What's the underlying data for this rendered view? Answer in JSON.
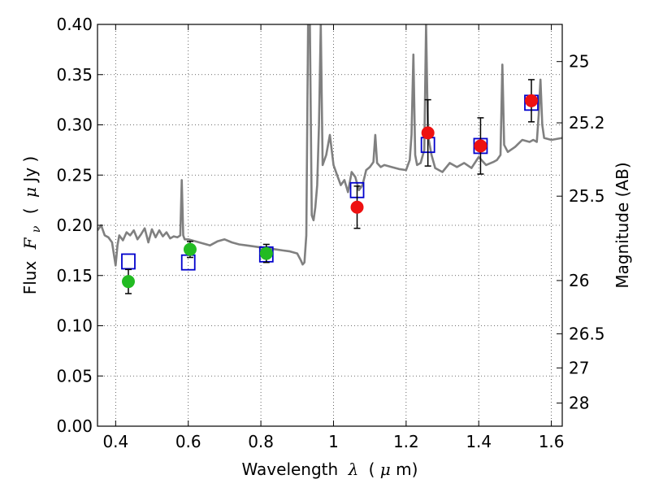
{
  "chart_data": {
    "type": "scatter",
    "xlabel_prefix": "Wavelength",
    "xlabel_symbol": "λ",
    "xlabel_unit_open": "(",
    "xlabel_unit_mu": "μ",
    "xlabel_unit_rest": "m)",
    "ylabel_prefix": "Flux",
    "ylabel_symbol": "F",
    "ylabel_sub": "ν",
    "ylabel_unit_open": "(",
    "ylabel_unit_mu": "μ",
    "ylabel_unit_rest": "Jy )",
    "y2label": "Magnitude (AB)",
    "xlim": [
      0.35,
      1.63
    ],
    "ylim": [
      0,
      0.4
    ],
    "grid": true,
    "x_ticks": [
      0.4,
      0.6,
      0.8,
      1.0,
      1.2,
      1.4,
      1.6
    ],
    "x_tick_labels": [
      "0.4",
      "0.6",
      "0.8",
      "1",
      "1.2",
      "1.4",
      "1.6"
    ],
    "y_ticks": [
      0,
      0.05,
      0.1,
      0.15,
      0.2,
      0.25,
      0.3,
      0.35,
      0.4
    ],
    "y_tick_labels": [
      "0.00",
      "0.05",
      "0.10",
      "0.15",
      "0.20",
      "0.25",
      "0.30",
      "0.35",
      "0.40"
    ],
    "y2_ticks": [
      {
        "flux": 0.363,
        "label": "25"
      },
      {
        "flux": 0.302,
        "label": "25.2"
      },
      {
        "flux": 0.229,
        "label": "25.5"
      },
      {
        "flux": 0.145,
        "label": "26"
      },
      {
        "flux": 0.092,
        "label": "26.5"
      },
      {
        "flux": 0.058,
        "label": "27"
      },
      {
        "flux": 0.023,
        "label": "28"
      }
    ],
    "colors": {
      "model": "#808080",
      "model_photometry": "#0000cc",
      "optical_points": "#22bb22",
      "nir_points": "#ee1111",
      "error_bars": "#000000"
    },
    "series": [
      {
        "kind": "model_spectrum",
        "points": [
          [
            0.35,
            0.195
          ],
          [
            0.36,
            0.2
          ],
          [
            0.37,
            0.19
          ],
          [
            0.38,
            0.188
          ],
          [
            0.39,
            0.183
          ],
          [
            0.4,
            0.16
          ],
          [
            0.405,
            0.18
          ],
          [
            0.41,
            0.19
          ],
          [
            0.42,
            0.185
          ],
          [
            0.43,
            0.193
          ],
          [
            0.44,
            0.19
          ],
          [
            0.45,
            0.195
          ],
          [
            0.46,
            0.186
          ],
          [
            0.47,
            0.191
          ],
          [
            0.48,
            0.197
          ],
          [
            0.49,
            0.183
          ],
          [
            0.5,
            0.196
          ],
          [
            0.51,
            0.188
          ],
          [
            0.52,
            0.195
          ],
          [
            0.53,
            0.189
          ],
          [
            0.54,
            0.193
          ],
          [
            0.55,
            0.187
          ],
          [
            0.56,
            0.189
          ],
          [
            0.57,
            0.188
          ],
          [
            0.578,
            0.19
          ],
          [
            0.582,
            0.245
          ],
          [
            0.586,
            0.19
          ],
          [
            0.59,
            0.186
          ],
          [
            0.6,
            0.186
          ],
          [
            0.62,
            0.184
          ],
          [
            0.64,
            0.182
          ],
          [
            0.66,
            0.18
          ],
          [
            0.68,
            0.184
          ],
          [
            0.7,
            0.186
          ],
          [
            0.72,
            0.183
          ],
          [
            0.74,
            0.181
          ],
          [
            0.76,
            0.18
          ],
          [
            0.78,
            0.179
          ],
          [
            0.8,
            0.178
          ],
          [
            0.82,
            0.177
          ],
          [
            0.84,
            0.176
          ],
          [
            0.86,
            0.175
          ],
          [
            0.88,
            0.174
          ],
          [
            0.9,
            0.172
          ],
          [
            0.91,
            0.165
          ],
          [
            0.915,
            0.161
          ],
          [
            0.92,
            0.163
          ],
          [
            0.925,
            0.19
          ],
          [
            0.93,
            0.4
          ],
          [
            0.935,
            0.4
          ],
          [
            0.94,
            0.21
          ],
          [
            0.945,
            0.205
          ],
          [
            0.95,
            0.218
          ],
          [
            0.955,
            0.24
          ],
          [
            0.96,
            0.3
          ],
          [
            0.965,
            0.4
          ],
          [
            0.97,
            0.26
          ],
          [
            0.98,
            0.27
          ],
          [
            0.99,
            0.29
          ],
          [
            1.0,
            0.26
          ],
          [
            1.01,
            0.25
          ],
          [
            1.02,
            0.24
          ],
          [
            1.03,
            0.245
          ],
          [
            1.04,
            0.233
          ],
          [
            1.05,
            0.253
          ],
          [
            1.06,
            0.248
          ],
          [
            1.07,
            0.235
          ],
          [
            1.08,
            0.24
          ],
          [
            1.09,
            0.255
          ],
          [
            1.1,
            0.258
          ],
          [
            1.11,
            0.263
          ],
          [
            1.115,
            0.29
          ],
          [
            1.12,
            0.262
          ],
          [
            1.13,
            0.258
          ],
          [
            1.14,
            0.26
          ],
          [
            1.16,
            0.258
          ],
          [
            1.18,
            0.256
          ],
          [
            1.2,
            0.255
          ],
          [
            1.21,
            0.265
          ],
          [
            1.215,
            0.29
          ],
          [
            1.22,
            0.37
          ],
          [
            1.225,
            0.27
          ],
          [
            1.23,
            0.26
          ],
          [
            1.24,
            0.262
          ],
          [
            1.25,
            0.275
          ],
          [
            1.255,
            0.4
          ],
          [
            1.26,
            0.29
          ],
          [
            1.27,
            0.27
          ],
          [
            1.28,
            0.257
          ],
          [
            1.3,
            0.253
          ],
          [
            1.32,
            0.262
          ],
          [
            1.34,
            0.258
          ],
          [
            1.36,
            0.262
          ],
          [
            1.38,
            0.257
          ],
          [
            1.4,
            0.268
          ],
          [
            1.42,
            0.26
          ],
          [
            1.44,
            0.263
          ],
          [
            1.45,
            0.265
          ],
          [
            1.46,
            0.27
          ],
          [
            1.465,
            0.36
          ],
          [
            1.47,
            0.28
          ],
          [
            1.48,
            0.273
          ],
          [
            1.5,
            0.278
          ],
          [
            1.52,
            0.285
          ],
          [
            1.54,
            0.283
          ],
          [
            1.55,
            0.285
          ],
          [
            1.56,
            0.283
          ],
          [
            1.565,
            0.31
          ],
          [
            1.57,
            0.345
          ],
          [
            1.575,
            0.3
          ],
          [
            1.58,
            0.287
          ],
          [
            1.6,
            0.285
          ],
          [
            1.63,
            0.287
          ]
        ]
      },
      {
        "kind": "model_photometry",
        "marker": "open-square",
        "points": [
          [
            0.435,
            0.164
          ],
          [
            0.6,
            0.163
          ],
          [
            0.815,
            0.171
          ],
          [
            1.065,
            0.235
          ],
          [
            1.26,
            0.28
          ],
          [
            1.405,
            0.279
          ],
          [
            1.545,
            0.322
          ]
        ]
      },
      {
        "kind": "observed_optical",
        "marker": "filled-circle",
        "points": [
          {
            "x": 0.435,
            "y": 0.144,
            "err": 0.012
          },
          {
            "x": 0.605,
            "y": 0.176,
            "err": 0.008
          },
          {
            "x": 0.815,
            "y": 0.172,
            "err": 0.009
          }
        ]
      },
      {
        "kind": "observed_nir",
        "marker": "filled-circle",
        "points": [
          {
            "x": 1.065,
            "y": 0.218,
            "err": 0.021
          },
          {
            "x": 1.26,
            "y": 0.292,
            "err": 0.033
          },
          {
            "x": 1.405,
            "y": 0.279,
            "err": 0.028
          },
          {
            "x": 1.545,
            "y": 0.324,
            "err": 0.021
          }
        ]
      }
    ]
  }
}
